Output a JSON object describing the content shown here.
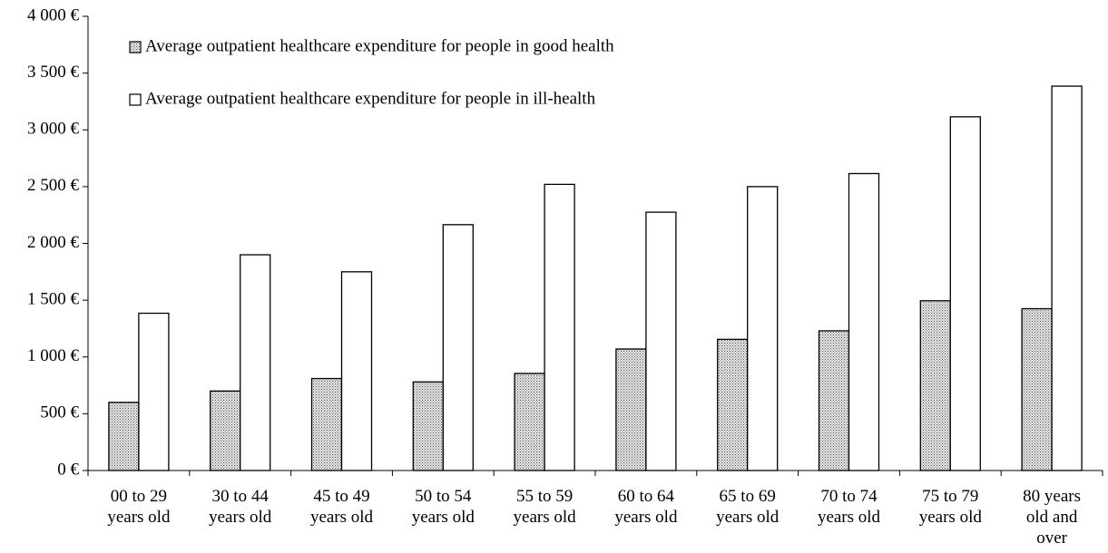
{
  "chart_data": {
    "type": "bar",
    "categories": [
      "00 to 29\nyears old",
      "30 to 44\nyears old",
      "45 to 49\nyears old",
      "50 to 54\nyears old",
      "55 to 59\nyears old",
      "60 to 64\nyears old",
      "65 to 69\nyears old",
      "70 to 74\nyears old",
      "75 to 79\nyears old",
      "80 years\nold and\nover"
    ],
    "series": [
      {
        "name": "Average outpatient healthcare expenditure for people in good health",
        "color": "#999999",
        "values": [
          600,
          700,
          810,
          780,
          855,
          1070,
          1155,
          1230,
          1495,
          1425
        ]
      },
      {
        "name": "Average outpatient healthcare expenditure for people in ill-health",
        "color": "#ffffff",
        "values": [
          1385,
          1900,
          1750,
          2165,
          2520,
          2275,
          2500,
          2615,
          3115,
          3385
        ]
      }
    ],
    "ylim": [
      0,
      4000
    ],
    "yticks": [
      {
        "value": 0,
        "label": "0 €"
      },
      {
        "value": 500,
        "label": "500 €"
      },
      {
        "value": 1000,
        "label": "1 000 €"
      },
      {
        "value": 1500,
        "label": "1 500 €"
      },
      {
        "value": 2000,
        "label": "2 000 €"
      },
      {
        "value": 2500,
        "label": "2 500 €"
      },
      {
        "value": 3000,
        "label": "3 000 €"
      },
      {
        "value": 3500,
        "label": "3 500 €"
      },
      {
        "value": 4000,
        "label": "4 000 €"
      }
    ],
    "grid": false,
    "legend": "top-left"
  }
}
